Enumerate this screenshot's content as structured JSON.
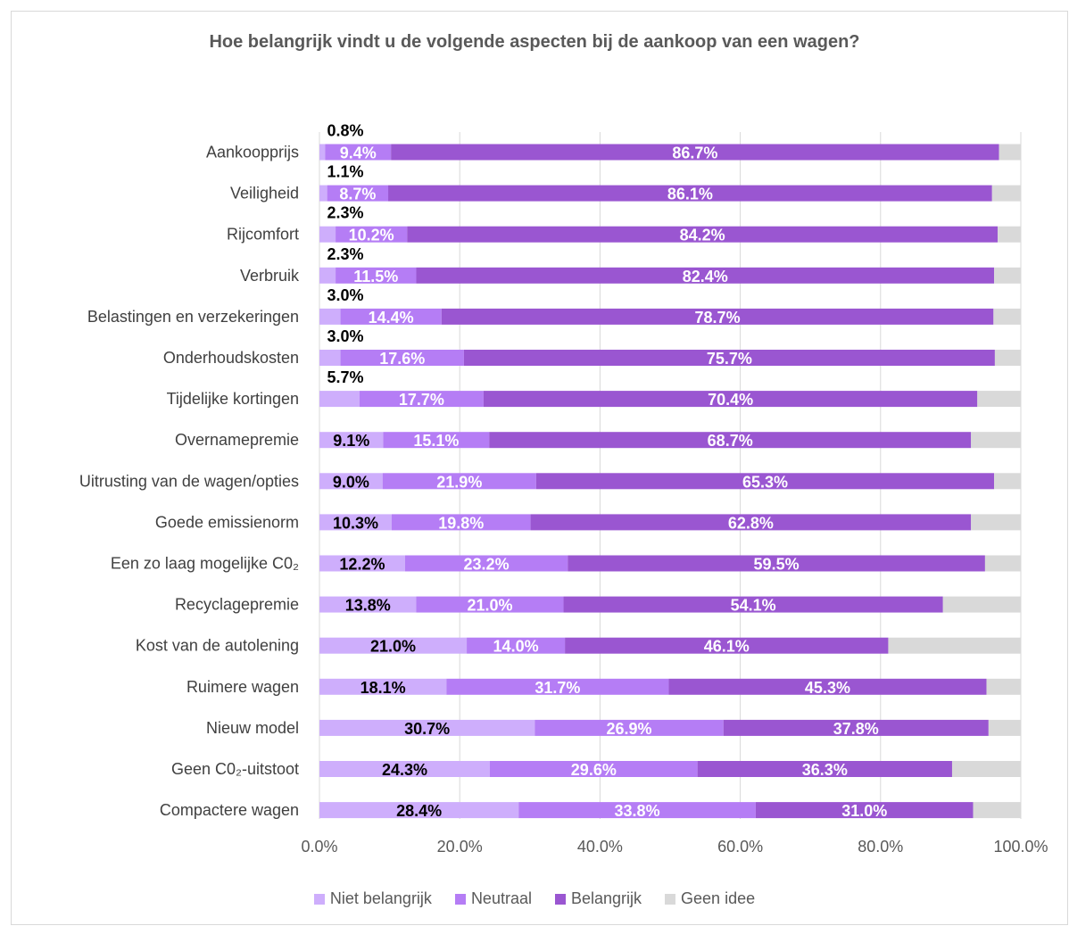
{
  "chart_data": {
    "type": "bar",
    "orientation": "horizontal",
    "stacked": true,
    "title": "Hoe belangrijk vindt u de volgende aspecten bij de aankoop van een wagen?",
    "categories": [
      "Aankoopprijs",
      "Veiligheid",
      "Rijcomfort",
      "Verbruik",
      "Belastingen en verzekeringen",
      "Onderhoudskosten",
      "Tijdelijke kortingen",
      "Overnamepremie",
      "Uitrusting van de wagen/opties",
      "Goede emissienorm",
      "Een zo laag mogelijke C0₂",
      "Recyclagepremie",
      "Kost van de autolening",
      "Ruimere wagen",
      "Nieuw model",
      "Geen C0₂-uitstoot",
      "Compactere wagen"
    ],
    "series": [
      {
        "name": "Niet belangrijk",
        "color": "#ceaefc",
        "values": [
          0.8,
          1.1,
          2.3,
          2.3,
          3.0,
          3.0,
          5.7,
          9.1,
          9.0,
          10.3,
          12.2,
          13.8,
          21.0,
          18.1,
          30.7,
          24.3,
          28.4
        ],
        "labels": [
          "0.8%",
          "1.1%",
          "2.3%",
          "2.3%",
          "3.0%",
          "3.0%",
          "5.7%",
          "9.1%",
          "9.0%",
          "10.3%",
          "12.2%",
          "13.8%",
          "21.0%",
          "18.1%",
          "30.7%",
          "24.3%",
          "28.4%"
        ]
      },
      {
        "name": "Neutraal",
        "color": "#b57df5",
        "values": [
          9.4,
          8.7,
          10.2,
          11.5,
          14.4,
          17.6,
          17.7,
          15.1,
          21.9,
          19.8,
          23.2,
          21.0,
          14.0,
          31.7,
          26.9,
          29.6,
          33.8
        ],
        "labels": [
          "9.4%",
          "8.7%",
          "10.2%",
          "11.5%",
          "14.4%",
          "17.6%",
          "17.7%",
          "15.1%",
          "21.9%",
          "19.8%",
          "23.2%",
          "21.0%",
          "14.0%",
          "31.7%",
          "26.9%",
          "29.6%",
          "33.8%"
        ]
      },
      {
        "name": "Belangrijk",
        "color": "#9a56d1",
        "values": [
          86.7,
          86.1,
          84.2,
          82.4,
          78.7,
          75.7,
          70.4,
          68.7,
          65.3,
          62.8,
          59.5,
          54.1,
          46.1,
          45.3,
          37.8,
          36.3,
          31.0
        ],
        "labels": [
          "86.7%",
          "86.1%",
          "84.2%",
          "82.4%",
          "78.7%",
          "75.7%",
          "70.4%",
          "68.7%",
          "65.3%",
          "62.8%",
          "59.5%",
          "54.1%",
          "46.1%",
          "45.3%",
          "37.8%",
          "36.3%",
          "31.0%"
        ]
      },
      {
        "name": "Geen idee",
        "color": "#d9d9d9",
        "values": [
          3.1,
          4.1,
          3.3,
          3.8,
          3.9,
          3.7,
          6.2,
          7.1,
          3.8,
          7.1,
          5.1,
          11.1,
          18.9,
          4.9,
          4.6,
          9.8,
          6.8
        ],
        "labels": []
      }
    ],
    "xlim": [
      0,
      100
    ],
    "xticks": [
      "0.0%",
      "20.0%",
      "40.0%",
      "60.0%",
      "80.0%",
      "100.0%"
    ],
    "grid": "vertical",
    "legend_position": "bottom",
    "label_colors": {
      "Niet belangrijk": "#000000",
      "Neutraal": "#ffffff",
      "Belangrijk": "#ffffff"
    }
  }
}
